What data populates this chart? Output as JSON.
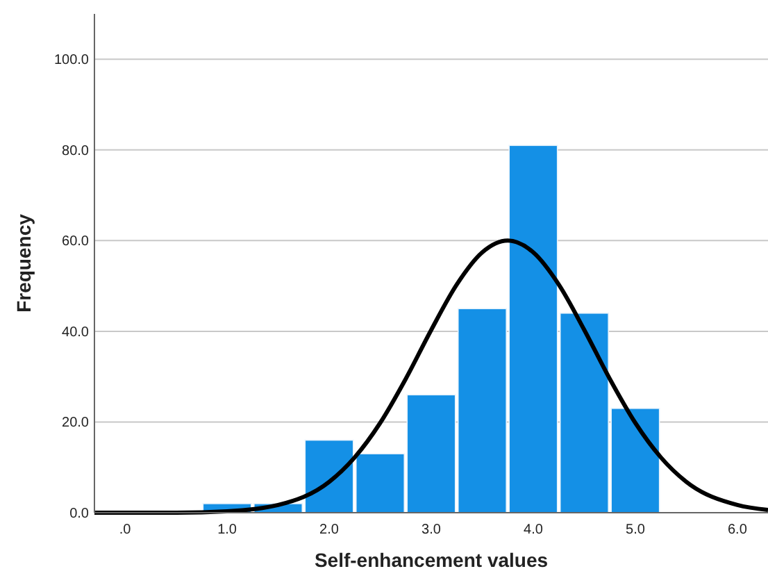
{
  "chart_data": {
    "type": "histogram",
    "xlabel": "Self-enhancement values",
    "ylabel": "Frequency",
    "bins": [
      0.75,
      1.25,
      1.75,
      2.25,
      2.75,
      3.25,
      3.75,
      4.25,
      4.75,
      5.25
    ],
    "values": [
      2,
      2,
      16,
      13,
      26,
      45,
      81,
      44,
      23
    ],
    "color": "#1490e6",
    "series": [
      {
        "type": "line",
        "color": "#000000",
        "x": [
          -0.3,
          0.5,
          1.0,
          1.5,
          2.0,
          2.25,
          2.5,
          2.75,
          3.0,
          3.25,
          3.5,
          3.75,
          4.0,
          4.25,
          4.5,
          4.75,
          5.0,
          5.25,
          5.5,
          6.0,
          6.3
        ],
        "values": [
          0,
          0,
          0.3,
          1.7,
          6.8,
          12.2,
          19.8,
          29.5,
          40.3,
          50.3,
          57.4,
          60,
          57.4,
          50.3,
          40.3,
          29.5,
          19.8,
          12.2,
          6.8,
          1.7,
          0.6
        ]
      }
    ],
    "xlim": [
      -0.3,
      6.3
    ],
    "xticks": [
      {
        "value": 0,
        "label": ".0"
      },
      {
        "value": 1,
        "label": "1.0"
      },
      {
        "value": 2,
        "label": "2.0"
      },
      {
        "value": 3,
        "label": "3.0"
      },
      {
        "value": 4,
        "label": "4.0"
      },
      {
        "value": 5,
        "label": "5.0"
      },
      {
        "value": 6,
        "label": "6.0"
      }
    ],
    "ylim": [
      0,
      110
    ],
    "yticks": [
      {
        "value": 0,
        "label": "0.0"
      },
      {
        "value": 20,
        "label": "20.0"
      },
      {
        "value": 40,
        "label": "40.0"
      },
      {
        "value": 60,
        "label": "60.0"
      },
      {
        "value": 80,
        "label": "80.0"
      },
      {
        "value": 100,
        "label": "100.0"
      }
    ],
    "grid": "y",
    "marker": "none",
    "line_style": "solid"
  }
}
